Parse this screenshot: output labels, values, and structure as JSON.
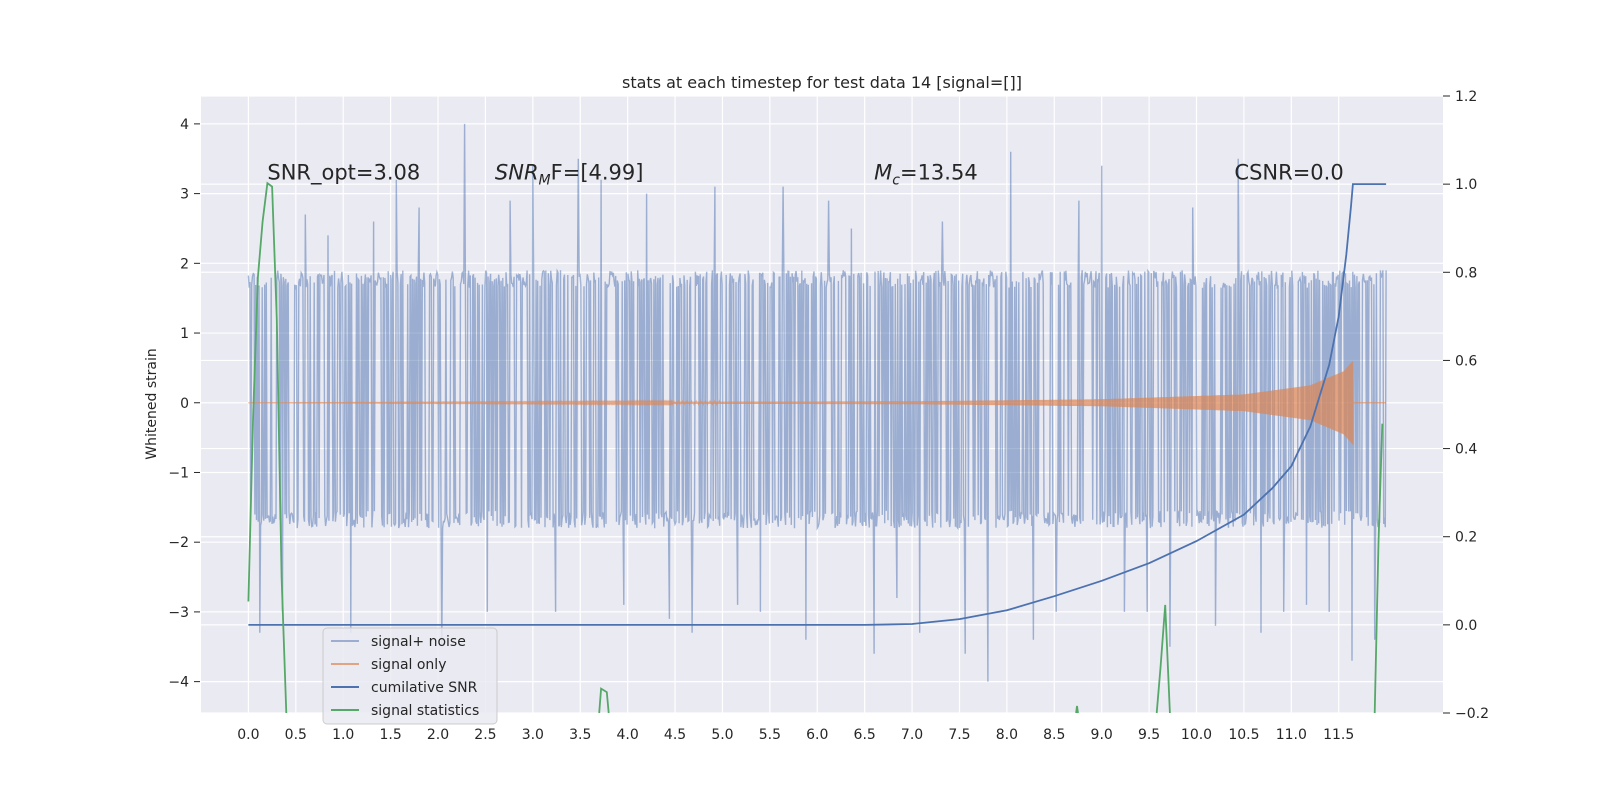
{
  "chart_data": {
    "type": "line",
    "title": "stats at each timestep for test data 14 [signal=[]]",
    "xlabel": "",
    "ylabel": "Whitened strain",
    "y2label": "",
    "xlim": [
      -0.5,
      12.6
    ],
    "ylim": [
      -4.45,
      4.4
    ],
    "y2lim": [
      -0.2,
      1.2
    ],
    "xticks": [
      0.0,
      0.5,
      1.0,
      1.5,
      2.0,
      2.5,
      3.0,
      3.5,
      4.0,
      4.5,
      5.0,
      5.5,
      6.0,
      6.5,
      7.0,
      7.5,
      8.0,
      8.5,
      9.0,
      9.5,
      10.0,
      10.5,
      11.0,
      11.5
    ],
    "xtick_labels": [
      "0.0",
      "0.5",
      "1.0",
      "1.5",
      "2.0",
      "2.5",
      "3.0",
      "3.5",
      "4.0",
      "4.5",
      "5.0",
      "5.5",
      "6.0",
      "6.5",
      "7.0",
      "7.5",
      "8.0",
      "8.5",
      "9.0",
      "9.5",
      "10.0",
      "10.5",
      "11.0",
      "11.5"
    ],
    "yticks": [
      4,
      3,
      2,
      1,
      0,
      -1,
      -2,
      -3,
      -4
    ],
    "ytick_labels": [
      "4",
      "3",
      "2",
      "1",
      "0",
      "−1",
      "−2",
      "−3",
      "−4"
    ],
    "y2ticks": [
      1.2,
      1.0,
      0.8,
      0.6,
      0.4,
      0.2,
      0.0,
      -0.2
    ],
    "y2tick_labels": [
      "1.2",
      "1.0",
      "0.8",
      "0.6",
      "0.4",
      "0.2",
      "0.0",
      "−0.2"
    ],
    "grid": true,
    "legend_position": "lower-left",
    "annotations": [
      {
        "prefix": "SNR_opt=3.08",
        "italic": "",
        "sub": "",
        "suffix": "",
        "x": 0.2,
        "y": 3.2
      },
      {
        "prefix": "",
        "italic": "SNR",
        "sub": "M",
        "suffix": "F=[4.99]",
        "x": 2.6,
        "y": 3.2
      },
      {
        "prefix": "",
        "italic": "M",
        "sub": "c",
        "suffix": "=13.54",
        "x": 6.6,
        "y": 3.2
      },
      {
        "prefix": "CSNR=0.0",
        "italic": "",
        "sub": "",
        "suffix": "",
        "x": 10.4,
        "y": 3.2
      }
    ],
    "series": [
      {
        "name": "signal+ noise",
        "axis": "left",
        "color": "#4c72b0",
        "opacity": 0.5,
        "style": "noise",
        "x_range": [
          0.0,
          12.0
        ],
        "typical_envelope": [
          -1.8,
          1.9
        ],
        "spike_peaks": [
          2.9,
          2.5,
          2.7,
          2.4,
          3.1,
          2.6,
          3.2,
          2.8,
          3.6,
          4.0,
          3.0,
          2.9,
          3.4,
          2.7,
          3.5,
          3.2,
          2.8,
          3.0,
          3.5,
          2.9,
          3.1,
          3.3,
          3.2,
          3.1,
          3.8
        ],
        "spike_troughs": [
          -3.3,
          -3.0,
          -3.6,
          -2.8,
          -3.3,
          -3.4,
          -3.6,
          -4.0,
          -3.5,
          -3.4,
          -3.0,
          -3.2,
          -3.3,
          -3.0,
          -3.0,
          -3.5,
          -2.9,
          -3.2,
          -3.1,
          -3.3,
          -3.0,
          -2.9,
          -3.0,
          -3.7,
          -3.4
        ]
      },
      {
        "name": "signal only",
        "axis": "left",
        "color": "#dd8452",
        "opacity": 0.7,
        "style": "chirp",
        "x_range": [
          0.0,
          11.65
        ],
        "amplitude": [
          [
            0.0,
            0.0
          ],
          [
            7.0,
            0.02
          ],
          [
            9.0,
            0.05
          ],
          [
            10.5,
            0.12
          ],
          [
            11.2,
            0.25
          ],
          [
            11.55,
            0.45
          ],
          [
            11.65,
            0.6
          ]
        ]
      },
      {
        "name": "cumilative SNR",
        "axis": "right",
        "color": "#4c72b0",
        "opacity": 1.0,
        "x": [
          0.0,
          6.5,
          7.0,
          7.5,
          8.0,
          8.5,
          9.0,
          9.5,
          10.0,
          10.5,
          10.8,
          11.0,
          11.2,
          11.4,
          11.5,
          11.58,
          11.63,
          11.65,
          12.0
        ],
        "y": [
          0.0,
          0.0,
          0.002,
          0.013,
          0.033,
          0.065,
          0.1,
          0.14,
          0.19,
          0.25,
          0.31,
          0.36,
          0.45,
          0.59,
          0.7,
          0.84,
          0.95,
          1.0,
          1.0
        ]
      },
      {
        "name": "signal statistics",
        "axis": "left",
        "color": "#55a868",
        "opacity": 1.0,
        "segments": [
          {
            "x": [
              0.0,
              0.05,
              0.1,
              0.15,
              0.2,
              0.25,
              0.3,
              0.35,
              0.4
            ],
            "y": [
              -2.85,
              -0.2,
              1.8,
              2.6,
              3.15,
              3.1,
              1.2,
              -2.5,
              -4.5
            ]
          },
          {
            "x": [
              3.7,
              3.72,
              3.78,
              3.8
            ],
            "y": [
              -4.5,
              -4.1,
              -4.15,
              -4.5
            ]
          },
          {
            "x": [
              8.73,
              8.74,
              8.75
            ],
            "y": [
              -4.5,
              -4.35,
              -4.5
            ]
          },
          {
            "x": [
              9.58,
              9.62,
              9.67,
              9.72
            ],
            "y": [
              -4.5,
              -3.8,
              -2.9,
              -4.5
            ]
          },
          {
            "x": [
              11.88,
              11.92,
              11.96
            ],
            "y": [
              -4.5,
              -2.0,
              -0.3
            ]
          }
        ]
      }
    ]
  }
}
